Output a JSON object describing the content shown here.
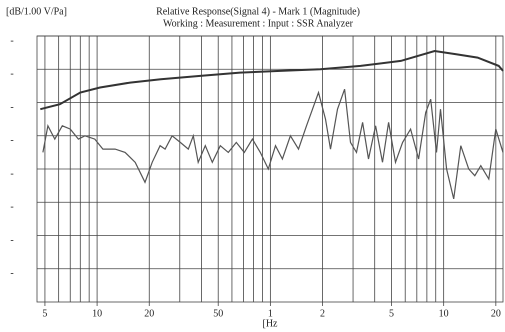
{
  "chart_data": {
    "type": "line",
    "title": "Relative Response(Signal 4) - Mark 1 (Magnitude)",
    "subtitle": "Working : Measurement : Input : SSR Analyzer",
    "y_label": "[dB/1.00 V/Pa]",
    "x_label": "[Hz",
    "x_scale": "log",
    "xlim": [
      45,
      22000
    ],
    "ylim": [
      0,
      8
    ],
    "xticks": [
      {
        "value": 50,
        "label": "5"
      },
      {
        "value": 100,
        "label": "10"
      },
      {
        "value": 200,
        "label": "20"
      },
      {
        "value": 500,
        "label": "50"
      },
      {
        "value": 1000,
        "label": "1"
      },
      {
        "value": 2000,
        "label": "2"
      },
      {
        "value": 5000,
        "label": "5"
      },
      {
        "value": 10000,
        "label": "10"
      },
      {
        "value": 20000,
        "label": "20"
      }
    ],
    "xgrid": [
      50,
      60,
      70,
      80,
      90,
      100,
      200,
      300,
      400,
      500,
      600,
      700,
      800,
      900,
      1000,
      2000,
      3000,
      4000,
      5000,
      6000,
      7000,
      8000,
      9000,
      10000,
      20000
    ],
    "yticks": [
      {
        "value": 1,
        "label": "-"
      },
      {
        "value": 2,
        "label": "-"
      },
      {
        "value": 3,
        "label": "-"
      },
      {
        "value": 4,
        "label": "-"
      },
      {
        "value": 5,
        "label": "-"
      },
      {
        "value": 6,
        "label": "-"
      },
      {
        "value": 7,
        "label": "-"
      },
      {
        "value": 8,
        "label": "-"
      }
    ],
    "grid": true,
    "series": [
      {
        "color": "#333333",
        "x": [
          47,
          61,
          80,
          104,
          155,
          233,
          394,
          668,
          1141,
          1944,
          3317,
          5654,
          8870,
          11820,
          15700,
          20780,
          22000
        ],
        "values": [
          5.8,
          5.95,
          6.3,
          6.45,
          6.6,
          6.7,
          6.8,
          6.9,
          6.95,
          7.0,
          7.1,
          7.25,
          7.55,
          7.45,
          7.35,
          7.1,
          6.95
        ]
      },
      {
        "color": "#555555",
        "x": [
          48.7,
          52,
          57,
          63,
          70,
          78,
          85,
          97,
          108,
          127,
          145,
          166,
          189,
          208,
          231,
          247,
          271,
          302,
          336,
          359,
          383,
          421,
          462,
          514,
          572,
          636,
          707,
          787,
          875,
          973,
          1070,
          1173,
          1305,
          1453,
          1615,
          1750,
          1895,
          2080,
          2223,
          2439,
          2682,
          2898,
          3141,
          3406,
          3681,
          4046,
          4437,
          4810,
          5274,
          5796,
          6444,
          7164,
          7875,
          8415,
          9090,
          9585,
          10395,
          11430,
          12555,
          13950,
          15120,
          16380,
          18225,
          19980,
          22000
        ],
        "values": [
          4.5,
          5.3,
          4.9,
          5.3,
          5.2,
          4.9,
          5.0,
          4.9,
          4.6,
          4.6,
          4.5,
          4.2,
          3.6,
          4.2,
          4.7,
          4.6,
          5.0,
          4.8,
          4.6,
          5.0,
          4.2,
          4.7,
          4.2,
          4.7,
          4.5,
          4.8,
          4.5,
          4.9,
          4.5,
          4.0,
          4.7,
          4.3,
          5.0,
          4.6,
          5.3,
          5.8,
          6.3,
          5.5,
          4.6,
          5.8,
          6.4,
          4.8,
          4.5,
          5.4,
          4.3,
          5.3,
          4.2,
          5.4,
          4.2,
          4.8,
          5.2,
          4.3,
          5.7,
          6.1,
          4.5,
          5.8,
          4.0,
          3.1,
          4.7,
          4.0,
          3.8,
          4.1,
          3.7,
          5.2,
          4.5
        ]
      }
    ]
  }
}
